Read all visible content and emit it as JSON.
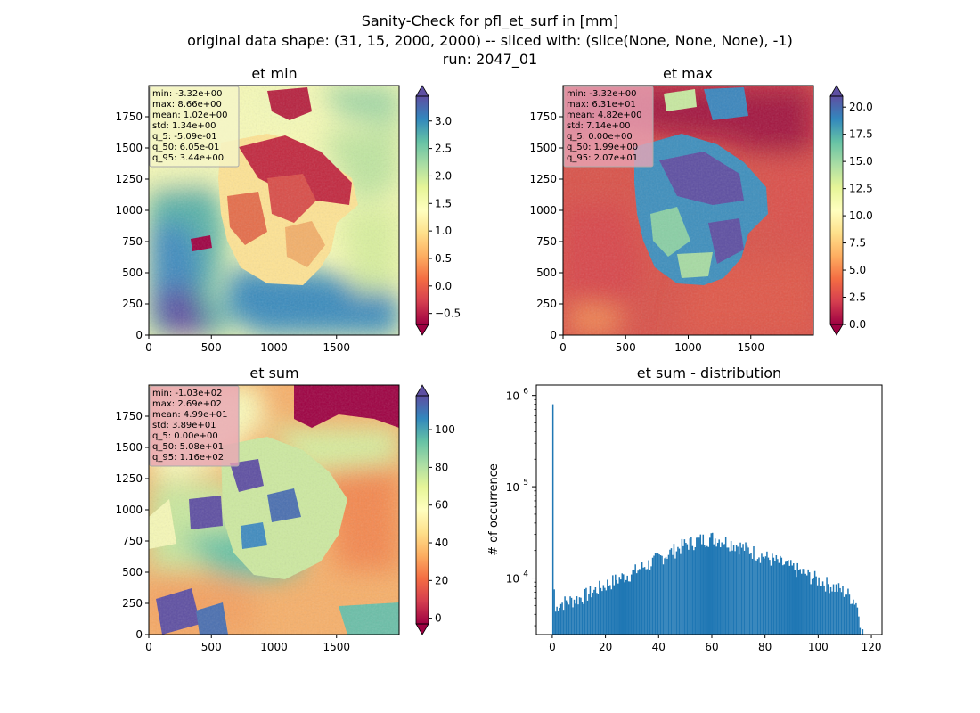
{
  "figure": {
    "title_line1": "Sanity-Check for pfl_et_surf in [mm]",
    "title_line2": "original data shape: (31, 15, 2000, 2000) -- sliced with: (slice(None, None, None), -1)",
    "title_line3": "run: 2047_01"
  },
  "chart_data": [
    {
      "type": "heatmap",
      "title": "et min",
      "colormap": "Spectral",
      "colormap_colors": [
        "#9e0142",
        "#d53e4f",
        "#f46d43",
        "#fdae61",
        "#fee08b",
        "#ffffbf",
        "#e6f598",
        "#abdda4",
        "#66c2a5",
        "#3288bd",
        "#5e4fa2"
      ],
      "xlim": [
        0,
        2000
      ],
      "ylim": [
        0,
        2000
      ],
      "xticks": [
        0,
        500,
        1000,
        1500
      ],
      "yticks": [
        0,
        250,
        500,
        750,
        1000,
        1250,
        1500,
        1750
      ],
      "colorbar": {
        "min": -0.7,
        "max": 3.45,
        "ticks": [
          -0.5,
          0.0,
          0.5,
          1.0,
          1.5,
          2.0,
          2.5,
          3.0
        ],
        "tick_labels": [
          "−0.5",
          "0.0",
          "0.5",
          "1.0",
          "1.5",
          "2.0",
          "2.5",
          "3.0"
        ],
        "extend": "both"
      },
      "stats_box_color": "#f5f5c8",
      "stats": [
        "min: -3.32e+00",
        "max: 8.66e+00",
        "mean: 1.02e+00",
        "std: 1.34e+00",
        "q_5: -5.09e-01",
        "q_50: 6.05e-01",
        "q_95: 3.44e+00"
      ]
    },
    {
      "type": "heatmap",
      "title": "et max",
      "colormap": "Spectral",
      "colormap_colors": [
        "#9e0142",
        "#d53e4f",
        "#f46d43",
        "#fdae61",
        "#fee08b",
        "#ffffbf",
        "#e6f598",
        "#abdda4",
        "#66c2a5",
        "#3288bd",
        "#5e4fa2"
      ],
      "xlim": [
        0,
        2000
      ],
      "ylim": [
        0,
        2000
      ],
      "xticks": [
        0,
        500,
        1000,
        1500
      ],
      "yticks": [
        0,
        250,
        500,
        750,
        1000,
        1250,
        1500,
        1750
      ],
      "colorbar": {
        "min": 0.0,
        "max": 21.0,
        "ticks": [
          0,
          2.5,
          5,
          7.5,
          10,
          12.5,
          15,
          17.5,
          20
        ],
        "tick_labels": [
          "0.0",
          "2.5",
          "5.0",
          "7.5",
          "10.0",
          "12.5",
          "15.0",
          "17.5",
          "20.0"
        ],
        "extend": "both"
      },
      "stats_box_color": "#e9a5b5",
      "stats": [
        "min: -3.32e+00",
        "max: 6.31e+01",
        "mean: 4.82e+00",
        "std: 7.14e+00",
        "q_5: 0.00e+00",
        "q_50: 1.99e+00",
        "q_95: 2.07e+01"
      ]
    },
    {
      "type": "heatmap",
      "title": "et sum",
      "colormap": "Spectral",
      "colormap_colors": [
        "#9e0142",
        "#d53e4f",
        "#f46d43",
        "#fdae61",
        "#fee08b",
        "#ffffbf",
        "#e6f598",
        "#abdda4",
        "#66c2a5",
        "#3288bd",
        "#5e4fa2"
      ],
      "xlim": [
        0,
        2000
      ],
      "ylim": [
        0,
        2000
      ],
      "xticks": [
        0,
        500,
        1000,
        1500
      ],
      "yticks": [
        0,
        250,
        500,
        750,
        1000,
        1250,
        1500,
        1750
      ],
      "colorbar": {
        "min": -3,
        "max": 118,
        "ticks": [
          0,
          20,
          40,
          60,
          80,
          100
        ],
        "tick_labels": [
          "0",
          "20",
          "40",
          "60",
          "80",
          "100"
        ],
        "extend": "both"
      },
      "stats_box_color": "#e9a5b5",
      "stats": [
        "min: -1.03e+02",
        "max: 2.69e+02",
        "mean: 4.99e+01",
        "std: 3.89e+01",
        "q_5: 0.00e+00",
        "q_50: 5.08e+01",
        "q_95: 1.16e+02"
      ]
    },
    {
      "type": "bar",
      "title": "et sum - distribution",
      "ylabel": "# of occurrence",
      "xlabel": "",
      "ylog": true,
      "xlim": [
        -6,
        124
      ],
      "ylim": [
        2400,
        1300000
      ],
      "xticks": [
        0,
        20,
        40,
        60,
        80,
        100,
        120
      ],
      "yticks": [
        10000,
        100000,
        1000000
      ],
      "ytick_labels": [
        "10",
        "10",
        "10"
      ],
      "ytick_exponents": [
        "4",
        "5",
        "6"
      ],
      "bar_color": "#1f77b4",
      "bin_width": 0.5,
      "bins_x": [
        0,
        0.5,
        1,
        2,
        5,
        10,
        20,
        30,
        40,
        50,
        55,
        60,
        65,
        70,
        80,
        90,
        100,
        110,
        114,
        115.5,
        116,
        116.5
      ],
      "bins_y": [
        800000,
        7500,
        4300,
        5200,
        5500,
        6000,
        8500,
        11500,
        16500,
        23500,
        26000,
        27500,
        25500,
        22500,
        17000,
        13000,
        9500,
        7000,
        5500,
        3500,
        2800,
        2500
      ]
    }
  ]
}
